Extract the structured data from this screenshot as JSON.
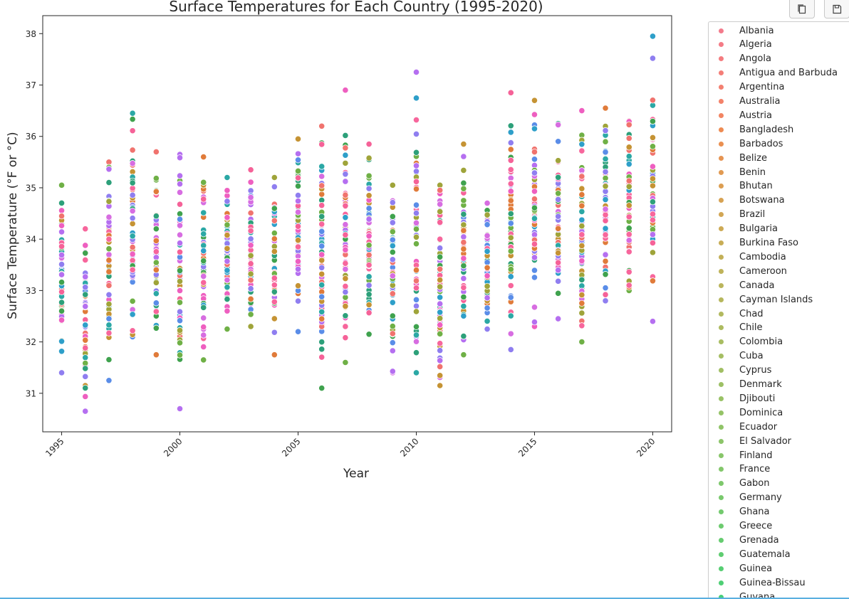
{
  "toolbar": {
    "copy_icon": "copy-icon",
    "save_icon": "save-icon"
  },
  "chart_data": {
    "type": "scatter",
    "title": "Surface Temperatures for Each Country (1995-2020)",
    "xlabel": "Year",
    "ylabel": "Surface Temperature (°F or °C)",
    "xlim": [
      1994.2,
      2020.8
    ],
    "ylim": [
      30.25,
      38.35
    ],
    "xticks": [
      "1995",
      "2000",
      "2005",
      "2010",
      "2015",
      "2020"
    ],
    "yticks": [
      "31",
      "32",
      "33",
      "34",
      "35",
      "36",
      "37",
      "38"
    ],
    "grid": false,
    "legend_position": "outside-right",
    "years": [
      1995,
      1996,
      1997,
      1998,
      1999,
      2000,
      2001,
      2002,
      2003,
      2004,
      2005,
      2006,
      2007,
      2008,
      2009,
      2010,
      2011,
      2012,
      2013,
      2014,
      2015,
      2016,
      2017,
      2018,
      2019,
      2020
    ],
    "year_ranges": [
      [
        31.4,
        35.05
      ],
      [
        30.65,
        34.2
      ],
      [
        31.25,
        35.5
      ],
      [
        32.1,
        36.45
      ],
      [
        31.75,
        35.7
      ],
      [
        30.7,
        35.65
      ],
      [
        31.65,
        35.6
      ],
      [
        32.25,
        35.2
      ],
      [
        32.3,
        35.35
      ],
      [
        31.75,
        35.2
      ],
      [
        32.2,
        35.95
      ],
      [
        31.1,
        36.2
      ],
      [
        31.6,
        36.9
      ],
      [
        32.15,
        35.85
      ],
      [
        31.4,
        35.05
      ],
      [
        31.4,
        37.25
      ],
      [
        31.15,
        35.05
      ],
      [
        31.75,
        35.85
      ],
      [
        32.25,
        34.7
      ],
      [
        31.85,
        36.85
      ],
      [
        32.3,
        36.7
      ],
      [
        32.45,
        36.25
      ],
      [
        32.0,
        36.5
      ],
      [
        32.8,
        36.55
      ],
      [
        33.0,
        36.3
      ],
      [
        32.4,
        37.95
      ]
    ],
    "series": [
      {
        "name": "Albania",
        "color": "#f37b8c"
      },
      {
        "name": "Algeria",
        "color": "#f47b86"
      },
      {
        "name": "Angola",
        "color": "#f47c7f"
      },
      {
        "name": "Antigua and Barbuda",
        "color": "#f47e78"
      },
      {
        "name": "Argentina",
        "color": "#f38071"
      },
      {
        "name": "Australia",
        "color": "#f3826a"
      },
      {
        "name": "Austria",
        "color": "#f28562"
      },
      {
        "name": "Bangladesh",
        "color": "#ee8b52"
      },
      {
        "name": "Barbados",
        "color": "#ea9051"
      },
      {
        "name": "Belize",
        "color": "#e69452"
      },
      {
        "name": "Benin",
        "color": "#e19a52"
      },
      {
        "name": "Bhutan",
        "color": "#dc9e52"
      },
      {
        "name": "Botswana",
        "color": "#d7a253"
      },
      {
        "name": "Brazil",
        "color": "#d2a654"
      },
      {
        "name": "Bulgaria",
        "color": "#cdaa55"
      },
      {
        "name": "Burkina Faso",
        "color": "#c8ad56"
      },
      {
        "name": "Cambodia",
        "color": "#c3b058"
      },
      {
        "name": "Cameroon",
        "color": "#bfb35a"
      },
      {
        "name": "Canada",
        "color": "#bab55c"
      },
      {
        "name": "Cayman Islands",
        "color": "#b6b75d"
      },
      {
        "name": "Chad",
        "color": "#b2b95f"
      },
      {
        "name": "Chile",
        "color": "#adbb60"
      },
      {
        "name": "Colombia",
        "color": "#a9bd62"
      },
      {
        "name": "Cuba",
        "color": "#a5be63"
      },
      {
        "name": "Cyprus",
        "color": "#a1bf64"
      },
      {
        "name": "Denmark",
        "color": "#9dc065"
      },
      {
        "name": "Djibouti",
        "color": "#99c266"
      },
      {
        "name": "Dominica",
        "color": "#95c367"
      },
      {
        "name": "Ecuador",
        "color": "#90c468"
      },
      {
        "name": "El Salvador",
        "color": "#8cc569"
      },
      {
        "name": "Finland",
        "color": "#88c66a"
      },
      {
        "name": "France",
        "color": "#83c76b"
      },
      {
        "name": "Gabon",
        "color": "#7ec86c"
      },
      {
        "name": "Germany",
        "color": "#79c96d"
      },
      {
        "name": "Ghana",
        "color": "#73ca6e"
      },
      {
        "name": "Greece",
        "color": "#6dcb6f"
      },
      {
        "name": "Grenada",
        "color": "#66cc70"
      },
      {
        "name": "Guatemala",
        "color": "#5fcd71"
      },
      {
        "name": "Guinea",
        "color": "#57ce73"
      },
      {
        "name": "Guinea-Bissau",
        "color": "#4fcf75"
      },
      {
        "name": "Guyana",
        "color": "#46cf78"
      }
    ],
    "scatter_palette": [
      "#f0736e",
      "#e07b3a",
      "#c59334",
      "#9fa43a",
      "#6fb046",
      "#3fa24e",
      "#2da07a",
      "#2ba8a5",
      "#2e9fc9",
      "#5a8de8",
      "#8f7ef0",
      "#b56ff0",
      "#d76de1",
      "#ee5fc0",
      "#f56298",
      "#f7669c"
    ]
  }
}
